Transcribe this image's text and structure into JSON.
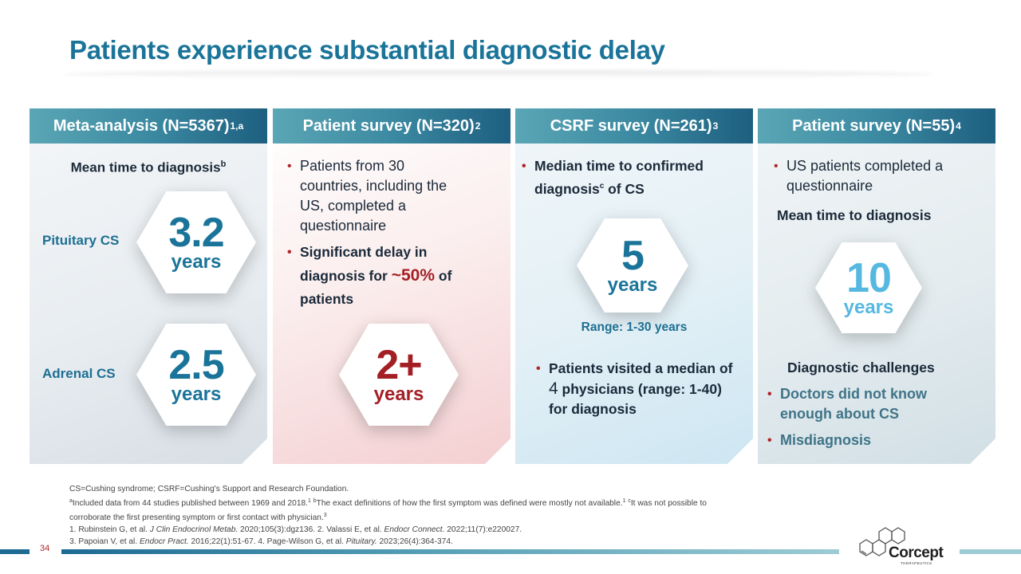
{
  "title": "Patients experience substantial diagnostic delay",
  "colors": {
    "brand_blue": "#1a7499",
    "accent_red": "#a31f24",
    "light_blue": "#56b8e0"
  },
  "cards": [
    {
      "header": "Meta-analysis (N=5367)",
      "header_sup": "1,a",
      "subheading": "Mean time to diagnosis",
      "subheading_sup": "b",
      "rows": [
        {
          "label": "Pituitary CS",
          "value": "3.2",
          "unit": "years"
        },
        {
          "label": "Adrenal CS",
          "value": "2.5",
          "unit": "years"
        }
      ]
    },
    {
      "header": "Patient survey (N=320)",
      "header_sup": "2",
      "bullet1": "Patients from 30 countries, including the US, completed a questionnaire",
      "bullet2_pre": "Significant delay in diagnosis for ",
      "bullet2_highlight": "~50%",
      "bullet2_post": " of patients",
      "value": "2+",
      "unit": "years"
    },
    {
      "header": "CSRF survey (N=261)",
      "header_sup": "3",
      "bullet1_pre": "Median time to confirmed diagnosis",
      "bullet1_sup": "c",
      "bullet1_post": " of CS",
      "value": "5",
      "unit": "years",
      "range": "Range: 1-30 years",
      "bullet2_pre": "Patients visited a median of ",
      "bullet2_num": "4",
      "bullet2_post": " physicians (range: 1-40) for diagnosis"
    },
    {
      "header": "Patient survey (N=55)",
      "header_sup": "4",
      "bullet1": "US patients completed a questionnaire",
      "subheading": "Mean time to diagnosis",
      "value": "10",
      "unit": "years",
      "challenges_heading": "Diagnostic challenges",
      "challenges": [
        "Doctors did not know enough about CS",
        "Misdiagnosis"
      ]
    }
  ],
  "footnotes": {
    "line1": "CS=Cushing syndrome; CSRF=Cushing's Support and Research Foundation.",
    "line2_sup_a": "a",
    "line2_a": "Included data from 44 studies published between 1969 and 2018.",
    "line2_ref1": "1",
    "line2_sup_b": "b",
    "line2_b": "The exact definitions of how the first symptom was defined were mostly not available.",
    "line2_ref2": "1",
    "line2_sup_c": "c",
    "line2_c": "It was not possible to",
    "line3": "corroborate the first presenting symptom or first contact with physician.",
    "line3_ref": "3",
    "ref1_a": "1. Rubinstein G, et al. ",
    "ref1_journal": "J Clin Endocrinol Metab.",
    "ref1_b": " 2020;105(3):dgz136. 2. Valassi E, et al. ",
    "ref2_journal": "Endocr Connect.",
    "ref2_b": " 2022;11(7):e220027.",
    "ref3_a": "3. Papoian V, et al. ",
    "ref3_journal": "Endocr Pract.",
    "ref3_b": " 2016;22(1):51-67. 4. Page-Wilson G, et al. ",
    "ref4_journal": "Pituitary.",
    "ref4_b": " 2023;26(4):364-374."
  },
  "page_number": "34",
  "logo": {
    "name": "Corcept",
    "sub": "THERAPEUTICS",
    "icon": "hexagon-molecule-icon"
  }
}
